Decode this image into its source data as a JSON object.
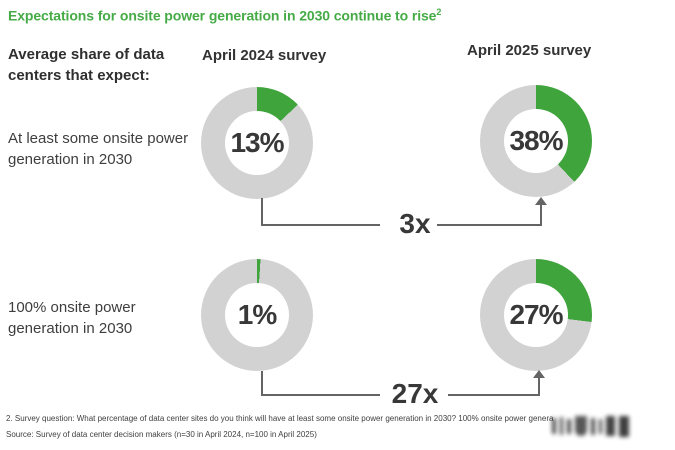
{
  "title": {
    "text": "Expectations for onsite power generation in 2030 continue to rise",
    "footnote_ref": "2"
  },
  "headers": {
    "left": "Average share of data centers that expect:",
    "col_2024": "April 2024 survey",
    "col_2025": "April 2025 survey"
  },
  "rows": [
    {
      "label": "At least some onsite power generation in 2030",
      "pct_2024": 13,
      "pct_2025": 38,
      "display_2024": "13%",
      "display_2025": "38%",
      "multiplier": "3x"
    },
    {
      "label": "100% onsite power generation in 2030",
      "pct_2024": 1,
      "pct_2025": 27,
      "display_2024": "1%",
      "display_2025": "27%",
      "multiplier": "27x"
    }
  ],
  "footnotes": [
    "2. Survey question: What percentage of data center sites do you think will have at least some onsite power generation in 2030? 100% onsite power genera",
    "Source: Survey of data center decision makers (n=30 in April 2024, n=100 in April 2025)"
  ],
  "colors": {
    "title_green": "#46ab46",
    "donut_green": "#3fa43c",
    "donut_gray": "#d2d2d2",
    "connector_gray": "#646464",
    "text_dark": "#383838"
  },
  "chart_data": {
    "type": "pie",
    "subtype": "donut-grid",
    "title": "Expectations for onsite power generation in 2030 continue to rise",
    "title_footnote_marker": "2",
    "unit": "%",
    "column_categories": [
      "April 2024 survey",
      "April 2025 survey"
    ],
    "row_categories": [
      "At least some onsite power generation in 2030",
      "100% onsite power generation in 2030"
    ],
    "series": [
      {
        "name": "At least some onsite power generation in 2030",
        "values": [
          13,
          38
        ],
        "growth_multiplier": "3x"
      },
      {
        "name": "100% onsite power generation in 2030",
        "values": [
          1,
          27
        ],
        "growth_multiplier": "27x"
      }
    ],
    "slice_start": "12 o'clock, clockwise",
    "colors": {
      "share": "#3fa43c",
      "remainder": "#d2d2d2"
    },
    "legend": "none",
    "annotations": [
      "3x increase from 13% to 38%",
      "27x increase from 1% to 27%"
    ]
  }
}
